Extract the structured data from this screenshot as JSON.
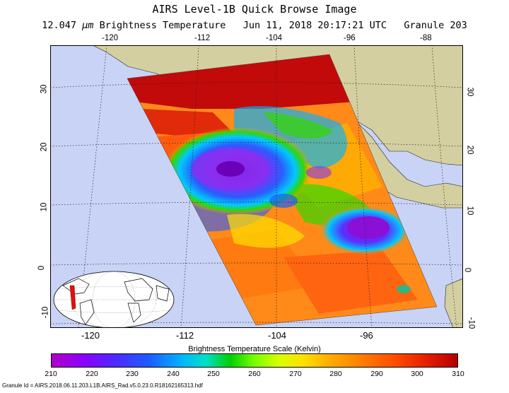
{
  "title": "AIRS Level-1B Quick Browse Image",
  "subtitle": {
    "wavelength": "12.047",
    "unit_symbol": "μm",
    "measure": "Brightness Temperature",
    "datetime": "Jun 11, 2018 20:17:21 UTC",
    "granule": "Granule 203"
  },
  "map": {
    "top_lon_labels": [
      "-120",
      "-112",
      "-104",
      "-96",
      "-88"
    ],
    "bottom_lon_labels": [
      "-120",
      "-112",
      "-104",
      "-96"
    ],
    "lat_labels": [
      "30",
      "20",
      "10",
      "0",
      "-10"
    ],
    "colors": {
      "ocean": "#c9d3f6",
      "land": "#d4cfa0",
      "swath_hot": "#c20a0a",
      "swath_warm": "#ff8a1a",
      "cloud_cold": "#7a1cd8"
    }
  },
  "scale": {
    "title": "Brightness Temperature Scale (Kelvin)",
    "ticks": [
      "210",
      "220",
      "230",
      "240",
      "250",
      "260",
      "270",
      "280",
      "290",
      "300",
      "310"
    ]
  },
  "footer": "Granule Id = AIRS.2018.06.11.203.L1B.AIRS_Rad.v5.0.23.0.R18162165313.hdf"
}
